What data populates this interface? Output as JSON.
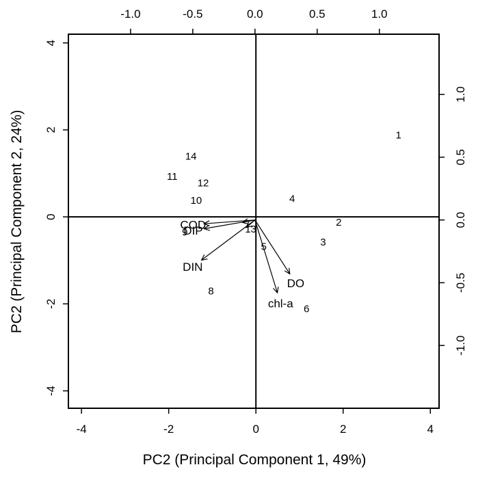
{
  "chart_data": {
    "type": "scatter",
    "subtype": "pca-biplot",
    "title": "",
    "xlabel": "PC2 (Principal Component 1, 49%)",
    "ylabel": "PC2 (Principal Component 2, 24%)",
    "xlim": [
      -4.3,
      4.2
    ],
    "ylim": [
      -4.4,
      4.2
    ],
    "xticks": [
      -4,
      -2,
      0,
      2,
      4
    ],
    "yticks": [
      -4,
      -2,
      0,
      2,
      4
    ],
    "top_xlim": [
      -1.5,
      1.48
    ],
    "top_xticks": [
      -1.0,
      -0.5,
      0.0,
      0.5,
      1.0
    ],
    "top_xtick_labels": [
      "-1.0",
      "-0.5",
      "0.0",
      "0.5",
      "1.0"
    ],
    "right_ylim": [
      -1.5,
      1.48
    ],
    "right_yticks": [
      1.0,
      0.5,
      0.0,
      -0.5,
      -1.0
    ],
    "right_ytick_labels": [
      "1.0",
      "0.5",
      "0.0",
      "-0.5",
      "-1.0"
    ],
    "reference_lines": {
      "x": 0,
      "y": 0
    },
    "grid": false,
    "observations": [
      {
        "label": "1",
        "x": 3.27,
        "y": 1.88
      },
      {
        "label": "2",
        "x": 1.9,
        "y": -0.12
      },
      {
        "label": "3",
        "x": 1.54,
        "y": -0.58
      },
      {
        "label": "4",
        "x": 0.83,
        "y": 0.42
      },
      {
        "label": "5",
        "x": 0.18,
        "y": -0.68
      },
      {
        "label": "6",
        "x": 1.16,
        "y": -2.11
      },
      {
        "label": "8",
        "x": -1.03,
        "y": -1.7
      },
      {
        "label": "9",
        "x": -1.63,
        "y": -0.35
      },
      {
        "label": "10",
        "x": -1.37,
        "y": 0.38
      },
      {
        "label": "11",
        "x": -1.92,
        "y": 0.93
      },
      {
        "label": "12",
        "x": -1.21,
        "y": 0.78
      },
      {
        "label": "13",
        "x": -0.12,
        "y": -0.28
      },
      {
        "label": "14",
        "x": -1.49,
        "y": 1.39
      }
    ],
    "loadings": [
      {
        "label": "COD",
        "x": -0.41,
        "y": -0.03
      },
      {
        "label": "DIP",
        "x": -0.41,
        "y": -0.07
      },
      {
        "label": "DIN",
        "x": -0.43,
        "y": -0.32
      },
      {
        "label": "DO",
        "x": 0.28,
        "y": -0.43
      },
      {
        "label": "chl-a",
        "x": 0.18,
        "y": -0.58
      },
      {
        "label": "",
        "x": -0.1,
        "y": -0.02
      },
      {
        "label": "",
        "x": -0.07,
        "y": -0.06
      }
    ]
  }
}
